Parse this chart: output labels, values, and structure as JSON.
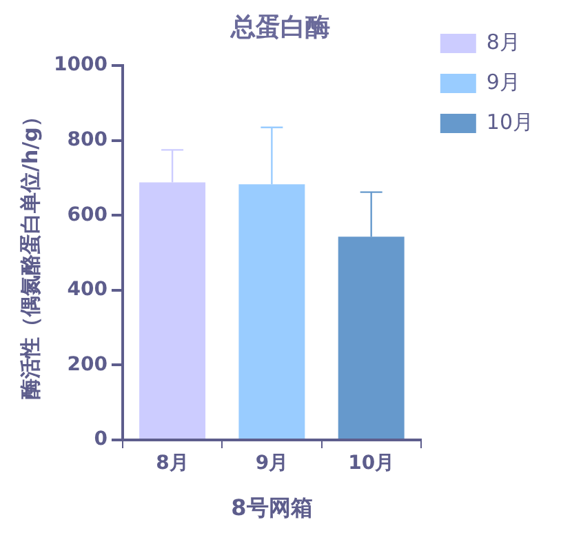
{
  "chart_data": {
    "type": "bar",
    "title": "总蛋白酶",
    "xlabel": "8号网箱",
    "ylabel": "酶活性（偶氮酪蛋白单位/h/g）",
    "categories": [
      "8月",
      "9月",
      "10月"
    ],
    "series": [
      {
        "name": "8月",
        "color": "#ccccff",
        "values": [
          688,
          null,
          null
        ],
        "errors": [
          [
            688,
            775
          ],
          null,
          null
        ]
      },
      {
        "name": "9月",
        "color": "#99ccff",
        "values": [
          null,
          683,
          null
        ],
        "errors": [
          null,
          [
            683,
            835
          ],
          null
        ]
      },
      {
        "name": "10月",
        "color": "#6699cc",
        "values": [
          null,
          null,
          543
        ],
        "errors": [
          null,
          null,
          [
            543,
            662
          ]
        ]
      }
    ],
    "ylim": [
      0,
      1000
    ],
    "yticks": [
      0,
      200,
      400,
      600,
      800,
      1000
    ],
    "grid": false,
    "legend": "right"
  }
}
